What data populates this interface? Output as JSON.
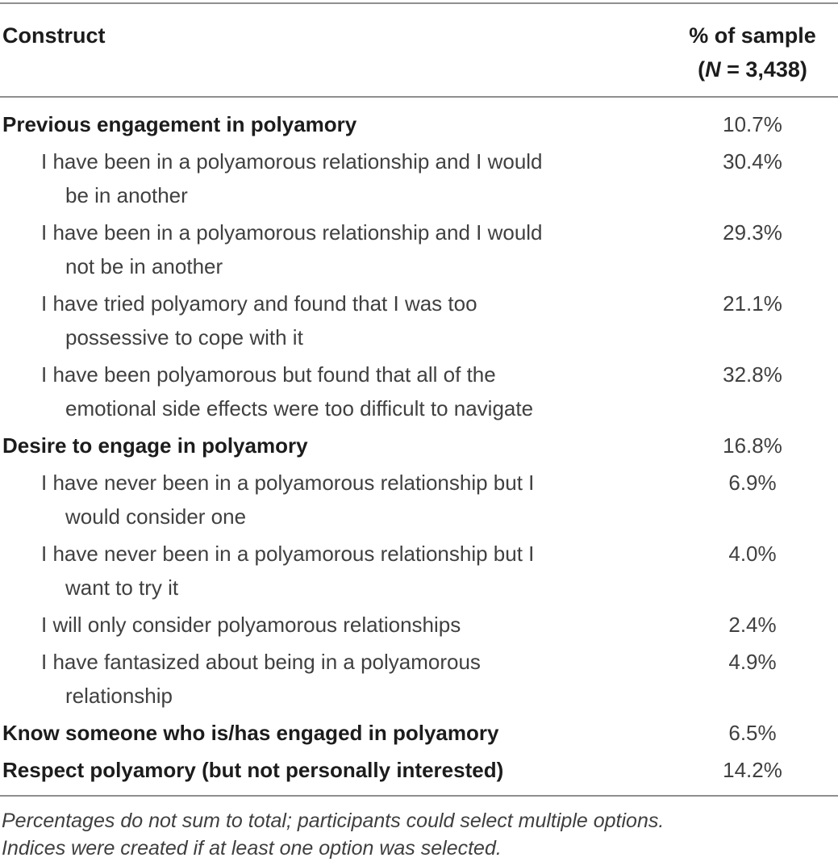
{
  "colors": {
    "background": "#ffffff",
    "rule": "#8f8f8f",
    "text_bold": "#1c1c1c",
    "text_regular": "#404040"
  },
  "header": {
    "construct_label": "Construct",
    "sample_line1": "% of sample",
    "sample_prefix": "(",
    "sample_n": "N",
    "sample_suffix": " = 3,438)"
  },
  "rows": [
    {
      "label": "Previous engagement in polyamory",
      "value": "10.7%",
      "bold": true
    },
    {
      "label": "I have been in a polyamorous relationship and I would\nbe in another",
      "value": "30.4%",
      "bold": false
    },
    {
      "label": "I have been in a polyamorous relationship and I would\nnot be in another",
      "value": "29.3%",
      "bold": false
    },
    {
      "label": "I have tried polyamory and found that I was too\npossessive to cope with it",
      "value": "21.1%",
      "bold": false
    },
    {
      "label": "I have been polyamorous but found that all of the\nemotional side effects were too difficult to navigate",
      "value": "32.8%",
      "bold": false
    },
    {
      "label": "Desire to engage in polyamory",
      "value": "16.8%",
      "bold": true
    },
    {
      "label": "I have never been in a polyamorous relationship but I\nwould consider one",
      "value": "6.9%",
      "bold": false
    },
    {
      "label": "I have never been in a polyamorous relationship but I\nwant to try it",
      "value": "4.0%",
      "bold": false
    },
    {
      "label": "I will only consider polyamorous relationships",
      "value": "2.4%",
      "bold": false
    },
    {
      "label": "I have fantasized about being in a polyamorous\nrelationship",
      "value": "4.9%",
      "bold": false
    },
    {
      "label": "Know someone who is/has engaged in polyamory",
      "value": "6.5%",
      "bold": true
    },
    {
      "label": "Respect polyamory (but not personally interested)",
      "value": "14.2%",
      "bold": true
    }
  ],
  "footnote": "Percentages do not sum to total; participants could select multiple options.\nIndices were created if at least one option was selected."
}
